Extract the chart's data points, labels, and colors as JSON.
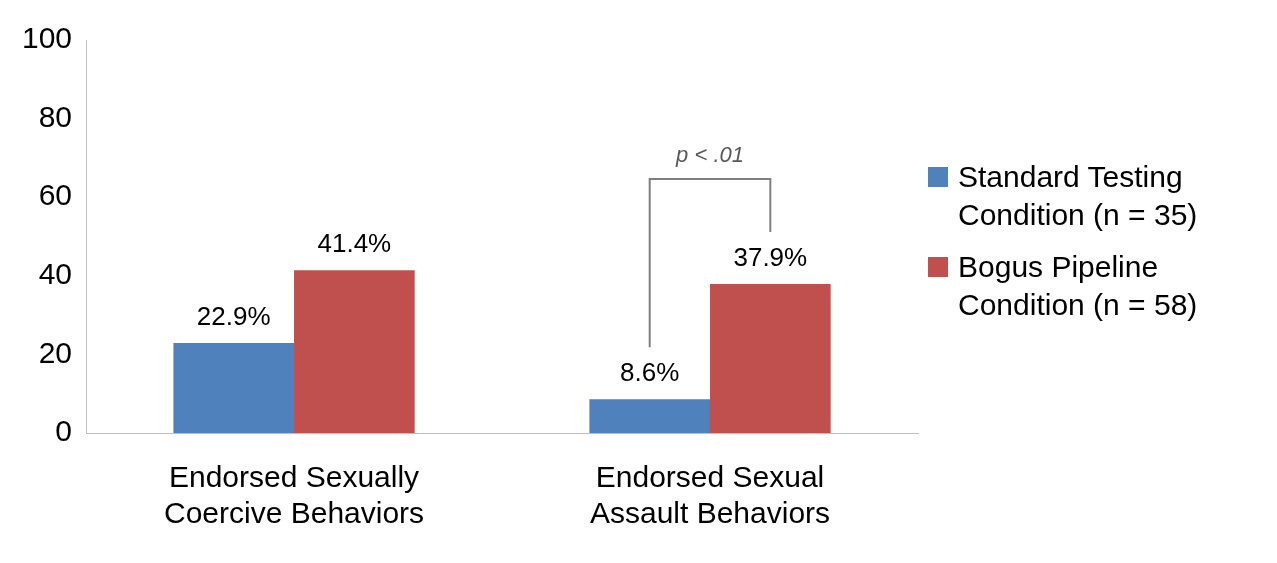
{
  "chart_data": {
    "type": "bar",
    "categories": [
      "Endorsed Sexually Coercive Behaviors",
      "Endorsed Sexual Assault Behaviors"
    ],
    "series": [
      {
        "name": "Standard Testing Condition (n = 35)",
        "color": "#4f81bd",
        "values": [
          22.9,
          8.6
        ],
        "value_labels": [
          "22.9%",
          "8.6%"
        ]
      },
      {
        "name": "Bogus Pipeline Condition (n = 58)",
        "color": "#c0504d",
        "values": [
          41.4,
          37.9
        ],
        "value_labels": [
          "41.4%",
          "37.9%"
        ]
      }
    ],
    "ylim": [
      0,
      100
    ],
    "yticks": [
      0,
      20,
      40,
      60,
      80,
      100
    ],
    "grid": false,
    "legend": "right",
    "annotations": [
      "p < .01"
    ]
  }
}
